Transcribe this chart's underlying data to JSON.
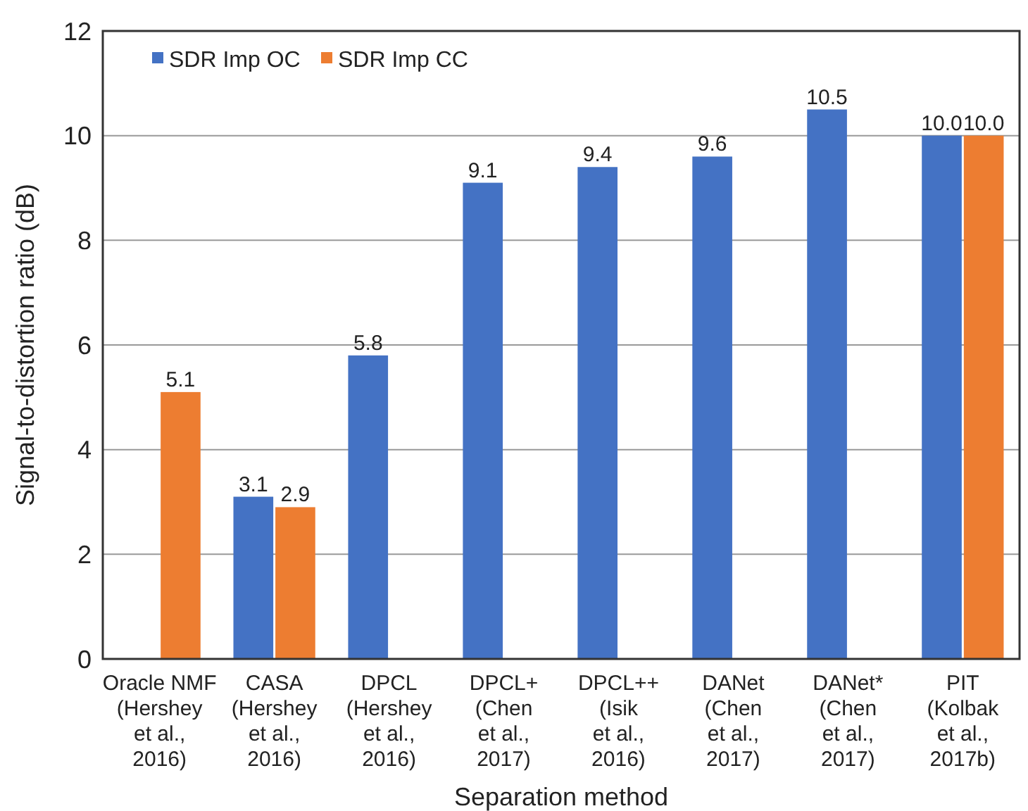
{
  "chart_data": {
    "type": "bar",
    "xlabel": "Separation method",
    "ylabel": "Signal-to-distortion ratio (dB)",
    "categories": [
      "Oracle NMF\n(Hershey\net al.,\n2016)",
      "CASA\n(Hershey\net al.,\n2016)",
      "DPCL\n(Hershey\net al.,\n2016)",
      "DPCL+\n(Chen\net al.,\n2017)",
      "DPCL++\n(Isik\net al.,\n2016)",
      "DANet\n(Chen\net al.,\n2017)",
      "DANet*\n(Chen\net al.,\n2017)",
      "PIT\n(Kolbak\net al.,\n2017b)"
    ],
    "series": [
      {
        "name": "SDR Imp OC",
        "color": "#4472c4",
        "values": [
          null,
          3.1,
          5.8,
          9.1,
          9.4,
          9.6,
          10.5,
          10.0
        ],
        "value_labels": [
          null,
          "3.1",
          "5.8",
          "9.1",
          "9.4",
          "9.6",
          "10.5",
          "10.0"
        ]
      },
      {
        "name": "SDR Imp CC",
        "color": "#ed7d31",
        "values": [
          5.1,
          2.9,
          null,
          null,
          null,
          null,
          null,
          10.0
        ],
        "value_labels": [
          "5.1",
          "2.9",
          null,
          null,
          null,
          null,
          null,
          "10.0"
        ]
      }
    ],
    "ylim": [
      0,
      12
    ],
    "yticks": [
      0,
      2,
      4,
      6,
      8,
      10,
      12
    ],
    "grid": "y",
    "legend": "top left"
  }
}
